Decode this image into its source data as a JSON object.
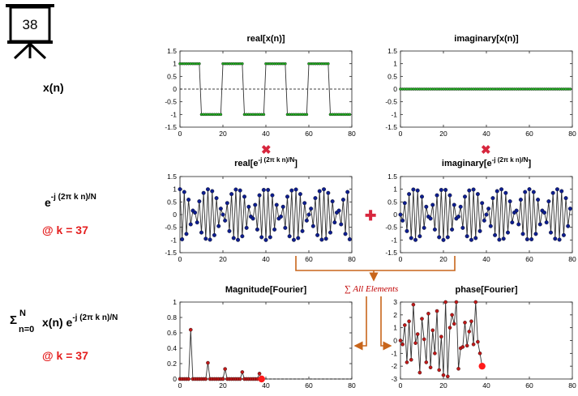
{
  "slide": {
    "number": "38"
  },
  "left_labels": {
    "signal": "x(n)",
    "kernel_base": "e",
    "kernel_exp": "-j (2π k n)/N",
    "kernel_k": "@ k = 37",
    "sum_symbol": "Σ",
    "sum_upper": "N",
    "sum_lower": "n=0",
    "sum_body": "x(n) e",
    "sum_exp": "-j (2π k n)/N",
    "sum_k": "@ k = 37"
  },
  "titles": {
    "real_x": "real[x(n)]",
    "imag_x": "imaginary[x(n)]",
    "real_e_pre": "real[e",
    "real_e_sup": "-j (2π k n)/N",
    "real_e_post": "]",
    "imag_e_pre": "imaginary[e",
    "imag_e_sup": "-j (2π k n)/N",
    "imag_e_post": "]",
    "magnitude": "Magnitude[Fourier]",
    "phase": "phase[Fourier]"
  },
  "operators": {
    "multiply": "✖",
    "add": "✚",
    "sum_label": "∑ All Elements"
  },
  "colors": {
    "green_marker": "#22b322",
    "blue_marker": "#0d1d8f",
    "red_marker": "#c01818",
    "operator_red": "#d7263d",
    "arrow_orange": "#c8651b",
    "current_point": "#ff1a1a"
  },
  "chart_data": [
    {
      "id": "realx",
      "type": "line",
      "title": "real[x(n)]",
      "xlim": [
        0,
        80
      ],
      "ylim": [
        -1.5,
        1.5
      ],
      "xticks": [
        0,
        20,
        40,
        60,
        80
      ],
      "yticks": [
        -1.5,
        -1,
        -0.5,
        0,
        0.5,
        1,
        1.5
      ],
      "zero_line": "dashed",
      "series": [
        {
          "x_range": [
            0,
            79
          ],
          "pattern": "square wave, period 20, +1 for n mod 20 < 10, -1 otherwise"
        }
      ]
    },
    {
      "id": "imagx",
      "type": "line",
      "title": "imaginary[x(n)]",
      "xlim": [
        0,
        80
      ],
      "ylim": [
        -1.5,
        1.5
      ],
      "xticks": [
        0,
        20,
        40,
        60,
        80
      ],
      "yticks": [
        -1.5,
        -1,
        -0.5,
        0,
        0.5,
        1,
        1.5
      ],
      "zero_line": "dashed",
      "series": [
        {
          "x_range": [
            0,
            79
          ],
          "pattern": "all zeros"
        }
      ]
    },
    {
      "id": "reale",
      "type": "line",
      "xlim": [
        0,
        80
      ],
      "ylim": [
        -1.5,
        1.5
      ],
      "xticks": [
        0,
        20,
        40,
        60,
        80
      ],
      "yticks": [
        -1.5,
        -1,
        -0.5,
        0,
        0.5,
        1,
        1.5
      ],
      "series": [
        {
          "x_range": [
            0,
            79
          ],
          "k": 37,
          "N": 80,
          "pattern": "cos(2π k n / N)"
        }
      ]
    },
    {
      "id": "image",
      "type": "line",
      "xlim": [
        0,
        80
      ],
      "ylim": [
        -1.5,
        1.5
      ],
      "xticks": [
        0,
        20,
        40,
        60,
        80
      ],
      "yticks": [
        -1.5,
        -1,
        -0.5,
        0,
        0.5,
        1,
        1.5
      ],
      "series": [
        {
          "x_range": [
            0,
            79
          ],
          "k": 37,
          "N": 80,
          "pattern": "-sin(2π k n / N)"
        }
      ]
    },
    {
      "id": "mag",
      "type": "line",
      "title": "Magnitude[Fourier]",
      "xlim": [
        0,
        80
      ],
      "ylim": [
        0,
        1
      ],
      "xticks": [
        0,
        20,
        40,
        60,
        80
      ],
      "yticks": [
        0,
        0.2,
        0.4,
        0.6,
        0.8,
        1
      ],
      "zero_line": "dashed",
      "x": [
        0,
        1,
        2,
        3,
        4,
        5,
        6,
        7,
        8,
        9,
        10,
        11,
        12,
        13,
        14,
        15,
        16,
        17,
        18,
        19,
        20,
        21,
        22,
        23,
        24,
        25,
        26,
        27,
        28,
        29,
        30,
        31,
        32,
        33,
        34,
        35,
        36,
        37,
        38
      ],
      "values": [
        0,
        0,
        0,
        0,
        0,
        0.64,
        0,
        0,
        0,
        0,
        0,
        0,
        0,
        0.21,
        0,
        0,
        0,
        0,
        0,
        0,
        0,
        0.13,
        0,
        0,
        0,
        0,
        0,
        0,
        0,
        0.09,
        0,
        0,
        0,
        0,
        0,
        0,
        0,
        0.07,
        0
      ],
      "current_index": 38
    },
    {
      "id": "phase",
      "type": "line",
      "title": "phase[Fourier]",
      "xlim": [
        0,
        80
      ],
      "ylim": [
        -3,
        3
      ],
      "xticks": [
        0,
        20,
        40,
        60,
        80
      ],
      "yticks": [
        -3,
        -2,
        -1,
        0,
        1,
        2,
        3
      ],
      "x": [
        0,
        1,
        2,
        3,
        4,
        5,
        6,
        7,
        8,
        9,
        10,
        11,
        12,
        13,
        14,
        15,
        16,
        17,
        18,
        19,
        20,
        21,
        22,
        23,
        24,
        25,
        26,
        27,
        28,
        29,
        30,
        31,
        32,
        33,
        34,
        35,
        36,
        37,
        38
      ],
      "values": [
        0,
        -0.3,
        1.2,
        -1.7,
        1.5,
        -1.5,
        2.8,
        -0.2,
        0.5,
        -2.5,
        1.7,
        0.1,
        -1.7,
        2.1,
        -2.1,
        0.8,
        -1.0,
        2.3,
        -2.3,
        0.3,
        -2.7,
        3.0,
        -2.8,
        1.0,
        2.0,
        1.3,
        3.0,
        -2.2,
        -0.6,
        -0.5,
        1.4,
        -0.4,
        0.7,
        1.5,
        -0.3,
        3.0,
        -0.1,
        -1.0,
        -2.0
      ],
      "current_index": 38
    }
  ]
}
